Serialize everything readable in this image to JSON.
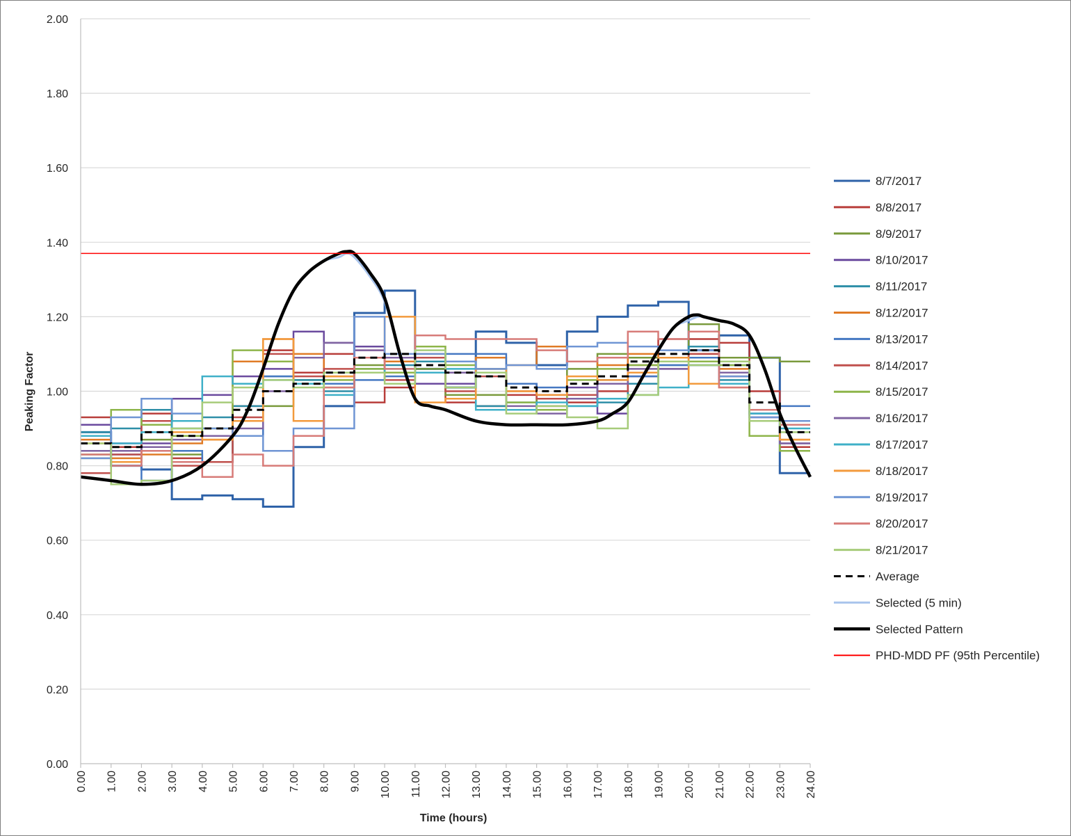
{
  "chart_data": {
    "type": "line",
    "title": "",
    "xlabel": "Time (hours)",
    "ylabel": "Peaking Factor",
    "xlim": [
      0,
      24
    ],
    "ylim": [
      0,
      2.0
    ],
    "x_ticks": [
      "0.00",
      "1.00",
      "2.00",
      "3.00",
      "4.00",
      "5.00",
      "6.00",
      "7.00",
      "8.00",
      "9.00",
      "10.00",
      "11.00",
      "12.00",
      "13.00",
      "14.00",
      "15.00",
      "16.00",
      "17.00",
      "18.00",
      "19.00",
      "20.00",
      "21.00",
      "22.00",
      "23.00",
      "24.00"
    ],
    "y_ticks": [
      "0.00",
      "0.20",
      "0.40",
      "0.60",
      "0.80",
      "1.00",
      "1.20",
      "1.40",
      "1.60",
      "1.80",
      "2.00"
    ],
    "grid": "horizontal",
    "legend_position": "right",
    "hours": [
      0,
      1,
      2,
      3,
      4,
      5,
      6,
      7,
      8,
      9,
      10,
      11,
      12,
      13,
      14,
      15,
      16,
      17,
      18,
      19,
      20,
      21,
      22,
      23
    ],
    "series": [
      {
        "name": "8/7/2017",
        "style": "step",
        "color": "#2e62a8",
        "width": 3,
        "values": [
          0.89,
          0.8,
          0.79,
          0.71,
          0.72,
          0.71,
          0.69,
          0.85,
          0.96,
          1.21,
          1.27,
          1.06,
          1.01,
          1.16,
          1.13,
          1.07,
          1.16,
          1.2,
          1.23,
          1.24,
          1.11,
          1.15,
          1.09,
          0.78
        ]
      },
      {
        "name": "8/8/2017",
        "style": "step",
        "color": "#b83d3a",
        "width": 2.5,
        "values": [
          0.93,
          0.85,
          0.94,
          0.82,
          0.81,
          0.96,
          1.11,
          1.05,
          1.1,
          0.97,
          1.01,
          1.05,
          0.97,
          0.96,
          0.99,
          0.96,
          0.97,
          1.0,
          1.09,
          1.14,
          1.14,
          1.13,
          1.0,
          0.85
        ]
      },
      {
        "name": "8/9/2017",
        "style": "step",
        "color": "#7a9a3c",
        "width": 2.5,
        "values": [
          0.83,
          0.81,
          0.87,
          0.83,
          0.81,
          0.92,
          0.96,
          1.03,
          1.01,
          1.07,
          1.05,
          1.06,
          0.99,
          0.99,
          0.95,
          0.98,
          1.06,
          1.1,
          1.09,
          1.08,
          1.18,
          1.09,
          1.09,
          1.08
        ]
      },
      {
        "name": "8/10/2017",
        "style": "step",
        "color": "#6a4a9e",
        "width": 2.5,
        "values": [
          0.91,
          0.86,
          0.86,
          0.98,
          0.99,
          1.04,
          1.06,
          1.16,
          1.13,
          1.12,
          1.08,
          1.02,
          1.02,
          1.06,
          1.02,
          0.99,
          1.01,
          0.94,
          1.04,
          1.06,
          1.07,
          1.05,
          0.93,
          0.86
        ]
      },
      {
        "name": "8/11/2017",
        "style": "step",
        "color": "#2e8fa8",
        "width": 2.5,
        "values": [
          0.89,
          0.9,
          0.95,
          0.9,
          0.93,
          0.96,
          1.04,
          1.03,
          1.0,
          1.06,
          1.07,
          1.08,
          1.05,
          0.96,
          0.97,
          0.95,
          0.96,
          0.97,
          1.02,
          1.07,
          1.12,
          1.03,
          0.94,
          0.92
        ]
      },
      {
        "name": "8/12/2017",
        "style": "step",
        "color": "#e07b26",
        "width": 2.5,
        "values": [
          0.87,
          0.82,
          0.83,
          0.86,
          0.87,
          1.08,
          1.14,
          1.1,
          1.04,
          1.09,
          1.08,
          1.1,
          1.05,
          1.09,
          1.07,
          1.12,
          1.08,
          1.07,
          1.1,
          1.09,
          1.1,
          1.06,
          0.95,
          0.87
        ]
      },
      {
        "name": "8/13/2017",
        "style": "step",
        "color": "#4578c2",
        "width": 2.5,
        "values": [
          0.88,
          0.83,
          0.76,
          0.84,
          0.81,
          0.88,
          1.04,
          1.02,
          1.02,
          1.03,
          1.04,
          1.09,
          1.1,
          1.1,
          1.02,
          1.01,
          0.98,
          1.03,
          1.04,
          1.07,
          1.09,
          1.07,
          0.94,
          0.96
        ]
      },
      {
        "name": "8/14/2017",
        "style": "step",
        "color": "#c0504d",
        "width": 2.5,
        "values": [
          0.78,
          0.83,
          0.92,
          0.8,
          0.81,
          0.93,
          1.1,
          1.04,
          1.06,
          1.11,
          1.03,
          1.09,
          1.0,
          1.04,
          1.0,
          0.98,
          0.99,
          1.0,
          1.07,
          1.09,
          1.1,
          1.04,
          0.92,
          0.84
        ]
      },
      {
        "name": "8/15/2017",
        "style": "step",
        "color": "#8eb54a",
        "width": 2.5,
        "values": [
          0.82,
          0.95,
          0.91,
          0.88,
          0.9,
          1.11,
          1.08,
          1.02,
          1.03,
          1.06,
          1.05,
          1.12,
          1.07,
          1.06,
          0.97,
          0.95,
          1.03,
          1.06,
          1.07,
          1.09,
          1.08,
          1.07,
          0.88,
          0.84
        ]
      },
      {
        "name": "8/16/2017",
        "style": "step",
        "color": "#8064a2",
        "width": 2.5,
        "values": [
          0.84,
          0.84,
          0.85,
          0.87,
          0.88,
          0.9,
          1.0,
          1.09,
          1.13,
          1.11,
          1.09,
          1.05,
          1.05,
          1.05,
          0.96,
          0.94,
          0.98,
          1.02,
          1.06,
          1.06,
          1.07,
          1.05,
          0.94,
          0.86
        ]
      },
      {
        "name": "8/17/2017",
        "style": "step",
        "color": "#3fb0c8",
        "width": 2.5,
        "values": [
          0.88,
          0.86,
          0.89,
          0.92,
          1.04,
          1.02,
          1.03,
          1.02,
          0.99,
          1.05,
          1.06,
          1.05,
          1.06,
          0.95,
          0.95,
          0.97,
          0.96,
          0.98,
          0.99,
          1.01,
          1.07,
          1.02,
          0.94,
          0.9
        ]
      },
      {
        "name": "8/18/2017",
        "style": "step",
        "color": "#f39a3c",
        "width": 2.5,
        "values": [
          0.86,
          0.81,
          0.84,
          0.89,
          0.87,
          0.92,
          1.14,
          0.92,
          1.04,
          1.09,
          1.2,
          0.97,
          0.98,
          1.06,
          1.0,
          0.99,
          1.04,
          1.03,
          1.05,
          1.09,
          1.02,
          1.01,
          0.95,
          0.87
        ]
      },
      {
        "name": "8/19/2017",
        "style": "step",
        "color": "#6f95d4",
        "width": 2.5,
        "values": [
          0.82,
          0.93,
          0.98,
          0.94,
          0.9,
          0.88,
          0.84,
          0.9,
          0.9,
          1.2,
          1.1,
          1.1,
          1.08,
          1.06,
          1.07,
          1.06,
          1.12,
          1.13,
          1.12,
          1.11,
          1.11,
          1.04,
          0.93,
          0.92
        ]
      },
      {
        "name": "8/20/2017",
        "style": "step",
        "color": "#d77b78",
        "width": 2.5,
        "values": [
          0.83,
          0.8,
          0.84,
          0.81,
          0.77,
          0.83,
          0.8,
          0.88,
          1.01,
          1.09,
          1.06,
          1.15,
          1.14,
          1.14,
          1.14,
          1.11,
          1.08,
          1.09,
          1.16,
          1.14,
          1.16,
          1.01,
          0.95,
          0.91
        ]
      },
      {
        "name": "8/21/2017",
        "style": "step",
        "color": "#a7cc7a",
        "width": 2.5,
        "values": [
          0.86,
          0.75,
          0.76,
          0.9,
          0.97,
          1.01,
          1.03,
          1.01,
          1.05,
          1.05,
          1.02,
          1.11,
          1.01,
          1.05,
          0.94,
          0.96,
          0.93,
          0.9,
          0.99,
          1.08,
          1.07,
          1.08,
          0.92,
          0.89
        ]
      },
      {
        "name": "Average",
        "style": "dashed-step",
        "color": "#000000",
        "width": 3,
        "values": [
          0.86,
          0.85,
          0.89,
          0.88,
          0.9,
          0.95,
          1.0,
          1.02,
          1.05,
          1.09,
          1.1,
          1.07,
          1.05,
          1.04,
          1.01,
          1.0,
          1.02,
          1.04,
          1.08,
          1.1,
          1.11,
          1.07,
          0.97,
          0.89
        ]
      },
      {
        "name": "Selected (5 min)",
        "style": "smooth",
        "color": "#a9c4ec",
        "width": 3,
        "x": [
          0,
          1,
          2,
          3,
          4,
          5,
          5.5,
          6,
          6.5,
          7,
          7.5,
          8,
          8.5,
          8.75,
          9,
          9.5,
          10,
          10.5,
          11,
          11.5,
          12,
          13,
          14,
          15,
          16,
          17,
          17.5,
          18,
          18.5,
          19,
          19.5,
          20,
          20.3,
          20.5,
          21,
          21.5,
          22,
          22.5,
          23,
          23.5,
          24
        ],
        "values": [
          0.77,
          0.76,
          0.75,
          0.76,
          0.8,
          0.88,
          0.95,
          1.06,
          1.18,
          1.27,
          1.32,
          1.35,
          1.36,
          1.37,
          1.36,
          1.31,
          1.24,
          1.1,
          0.98,
          0.96,
          0.95,
          0.92,
          0.91,
          0.91,
          0.91,
          0.92,
          0.94,
          0.97,
          1.04,
          1.11,
          1.17,
          1.19,
          1.2,
          1.2,
          1.19,
          1.18,
          1.15,
          1.06,
          0.94,
          0.85,
          0.77
        ]
      },
      {
        "name": "Selected Pattern",
        "style": "smooth",
        "color": "#000000",
        "width": 4.5,
        "x": [
          0,
          1,
          2,
          3,
          4,
          5,
          5.5,
          6,
          6.5,
          7,
          7.5,
          8,
          8.5,
          8.75,
          9,
          9.5,
          10,
          10.5,
          11,
          11.5,
          12,
          13,
          14,
          15,
          16,
          17,
          17.5,
          18,
          18.5,
          19,
          19.5,
          20,
          20.3,
          20.5,
          21,
          21.5,
          22,
          22.5,
          23,
          23.5,
          24
        ],
        "values": [
          0.77,
          0.76,
          0.75,
          0.76,
          0.8,
          0.88,
          0.95,
          1.06,
          1.18,
          1.27,
          1.32,
          1.35,
          1.37,
          1.375,
          1.37,
          1.32,
          1.25,
          1.1,
          0.98,
          0.96,
          0.95,
          0.92,
          0.91,
          0.91,
          0.91,
          0.92,
          0.94,
          0.97,
          1.04,
          1.11,
          1.17,
          1.2,
          1.205,
          1.2,
          1.19,
          1.18,
          1.15,
          1.06,
          0.94,
          0.85,
          0.77
        ]
      },
      {
        "name": "PHD-MDD PF (95th Percentile)",
        "style": "hline",
        "color": "#ff0000",
        "width": 1.5,
        "value": 1.37
      }
    ]
  }
}
